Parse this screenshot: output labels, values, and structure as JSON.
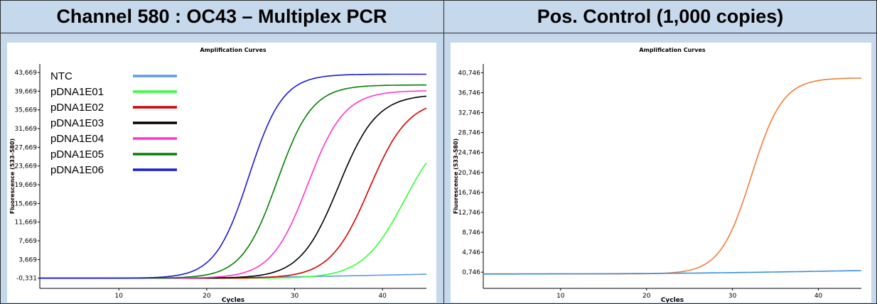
{
  "header": {
    "left_title": "Channel 580 : OC43 – Multiplex PCR",
    "right_title": "Pos. Control (1,000 copies)"
  },
  "chart_data": [
    {
      "type": "line",
      "title": "Amplification Curves",
      "xlabel": "Cycles",
      "ylabel": "Fluorescence (533-580)",
      "xlim": [
        1,
        45
      ],
      "ylim": [
        -2.5,
        45.5
      ],
      "x_ticks": [
        10,
        20,
        30,
        40
      ],
      "y_ticks": [
        -0.331,
        3.669,
        7.669,
        11.669,
        15.669,
        19.669,
        23.669,
        27.669,
        31.669,
        35.669,
        39.669,
        43.669
      ],
      "y_tick_labels": [
        "-0,331",
        "3,669",
        "7,669",
        "11,669",
        "15,669",
        "19,669",
        "23,669",
        "27,669",
        "31,669",
        "35,669",
        "39,669",
        "43,669"
      ],
      "grid": false,
      "legend": "top-left",
      "series": [
        {
          "name": "NTC",
          "color": "#5b9bf0",
          "baseline": -0.33,
          "plateau": 1.0,
          "mid": 40,
          "k": 0.12
        },
        {
          "name": "pDNA1E01",
          "color": "#33ff33",
          "baseline": -0.33,
          "plateau": 33.0,
          "mid": 42.5,
          "k": 0.42
        },
        {
          "name": "pDNA1E02",
          "color": "#d40000",
          "baseline": -0.33,
          "plateau": 38.0,
          "mid": 38.5,
          "k": 0.45
        },
        {
          "name": "pDNA1E03",
          "color": "#000000",
          "baseline": -0.33,
          "plateau": 39.0,
          "mid": 35.0,
          "k": 0.46
        },
        {
          "name": "pDNA1E04",
          "color": "#ff33cc",
          "baseline": -0.33,
          "plateau": 39.8,
          "mid": 31.5,
          "k": 0.48
        },
        {
          "name": "pDNA1E05",
          "color": "#008000",
          "baseline": -0.33,
          "plateau": 41.0,
          "mid": 28.0,
          "k": 0.5
        },
        {
          "name": "pDNA1E06",
          "color": "#1a1ad6",
          "baseline": -0.33,
          "plateau": 43.3,
          "mid": 24.8,
          "k": 0.52
        }
      ]
    },
    {
      "type": "line",
      "title": "Amplification Curves",
      "xlabel": "Cycles",
      "ylabel": "Fluorescence (533-580)",
      "xlim": [
        1,
        45
      ],
      "ylim": [
        -2.5,
        42.5
      ],
      "x_ticks": [
        10,
        20,
        30,
        40
      ],
      "y_ticks": [
        0.746,
        4.746,
        8.746,
        12.746,
        16.746,
        20.746,
        24.746,
        28.746,
        32.746,
        36.746,
        40.746
      ],
      "y_tick_labels": [
        "0,746",
        "4,746",
        "8,746",
        "12,746",
        "16,746",
        "20,746",
        "24,746",
        "28,746",
        "32,746",
        "36,746",
        "40,746"
      ],
      "grid": false,
      "legend": "none",
      "series": [
        {
          "name": "",
          "color": "#f27d3a",
          "baseline": 0.4,
          "plateau": 39.7,
          "mid": 32.2,
          "k": 0.55
        },
        {
          "name": "",
          "color": "#3b8fd9",
          "baseline": 0.35,
          "plateau": 1.5,
          "mid": 40,
          "k": 0.1
        }
      ]
    }
  ]
}
